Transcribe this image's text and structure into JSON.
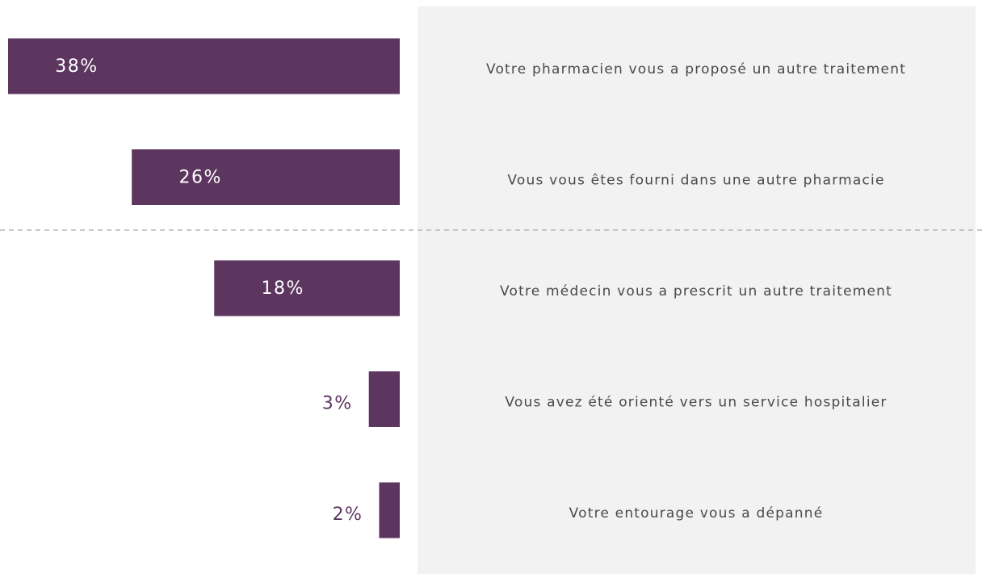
{
  "chart_data": {
    "type": "bar",
    "orientation": "horizontal",
    "categories": [
      "Votre pharmacien vous a proposé un autre traitement",
      "Vous vous êtes fourni dans une autre pharmacie",
      "Votre médecin vous a prescrit un autre traitement",
      "Vous avez été orienté vers un service hospitalier",
      "Votre entourage vous a dépanné"
    ],
    "values": [
      38,
      26,
      18,
      3,
      2
    ],
    "value_labels": [
      "38%",
      "26%",
      "18%",
      "3%",
      "2%"
    ],
    "color": "#5d3660"
  }
}
